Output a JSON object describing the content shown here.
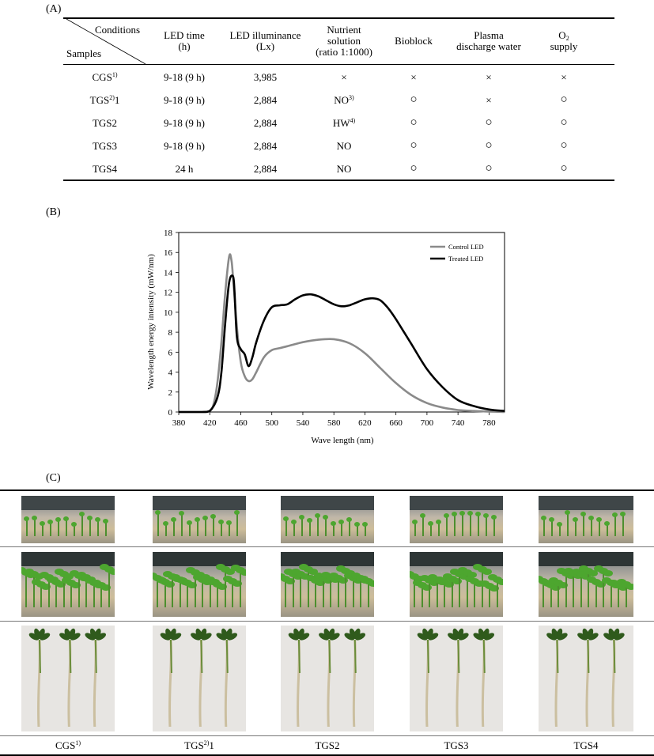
{
  "panel_labels": {
    "a": "(A)",
    "b": "(B)",
    "c": "(C)"
  },
  "table": {
    "corner_top": "Conditions",
    "corner_bottom": "Samples",
    "headers": [
      {
        "line1": "LED time",
        "line2": "(h)"
      },
      {
        "line1": "LED illuminance",
        "line2": "(Lx)"
      },
      {
        "line1": "Nutrient",
        "line2": "solution",
        "line3": "(ratio 1:1000)"
      },
      {
        "line1": "Bioblock"
      },
      {
        "line1": "Plasma",
        "line2": "discharge water"
      },
      {
        "line1": "O",
        "sub": "2",
        "line2": "supply"
      }
    ],
    "rows": [
      {
        "sample": "CGS",
        "sup": "1)",
        "suffix": "",
        "led_time": "9-18 (9 h)",
        "lux": "3,985",
        "nutrient": "×",
        "nutrient_sup": "",
        "bioblock": "×",
        "plasma": "×",
        "o2": "×"
      },
      {
        "sample": "TGS",
        "sup": "2)",
        "suffix": "1",
        "led_time": "9-18 (9 h)",
        "lux": "2,884",
        "nutrient": "NO",
        "nutrient_sup": "3)",
        "bioblock": "○",
        "plasma": "×",
        "o2": "○"
      },
      {
        "sample": "TGS2",
        "sup": "",
        "suffix": "",
        "led_time": "9-18 (9 h)",
        "lux": "2,884",
        "nutrient": "HW",
        "nutrient_sup": "4)",
        "bioblock": "○",
        "plasma": "○",
        "o2": "○"
      },
      {
        "sample": "TGS3",
        "sup": "",
        "suffix": "",
        "led_time": "9-18 (9 h)",
        "lux": "2,884",
        "nutrient": "NO",
        "nutrient_sup": "",
        "bioblock": "○",
        "plasma": "○",
        "o2": "○"
      },
      {
        "sample": "TGS4",
        "sup": "",
        "suffix": "",
        "led_time": "24 h",
        "lux": "2,884",
        "nutrient": "NO",
        "nutrient_sup": "",
        "bioblock": "○",
        "plasma": "○",
        "o2": "○"
      }
    ]
  },
  "chart_data": {
    "type": "line",
    "title": "",
    "xlabel": "Wave length (nm)",
    "ylabel": "Wavelength energy intensity (mW/nm)",
    "xlim": [
      380,
      800
    ],
    "ylim": [
      0,
      18
    ],
    "xticks": [
      380,
      420,
      460,
      500,
      540,
      580,
      620,
      660,
      700,
      740,
      780
    ],
    "yticks": [
      0,
      2,
      4,
      6,
      8,
      10,
      12,
      14,
      16,
      18
    ],
    "grid": false,
    "legend_position": "top-right",
    "series": [
      {
        "name": "Control LED",
        "color": "#8a8a8a",
        "x": [
          380,
          410,
          420,
          425,
          430,
          435,
          440,
          445,
          448,
          450,
          455,
          460,
          465,
          470,
          475,
          480,
          490,
          500,
          510,
          520,
          540,
          560,
          580,
          600,
          620,
          640,
          660,
          680,
          700,
          720,
          740,
          760,
          780,
          800
        ],
        "y": [
          0,
          0,
          0.1,
          0.8,
          3,
          7,
          12,
          15.6,
          15.2,
          13.5,
          8.5,
          5,
          3.6,
          3.1,
          3.3,
          4,
          5.5,
          6.2,
          6.4,
          6.6,
          7,
          7.25,
          7.3,
          6.9,
          5.9,
          4.4,
          2.9,
          1.7,
          0.9,
          0.45,
          0.2,
          0.1,
          0.05,
          0
        ]
      },
      {
        "name": "Treated LED",
        "color": "#000000",
        "x": [
          380,
          410,
          420,
          430,
          435,
          440,
          445,
          450,
          452,
          455,
          460,
          465,
          470,
          475,
          480,
          490,
          500,
          510,
          520,
          530,
          540,
          550,
          560,
          570,
          580,
          590,
          600,
          610,
          620,
          630,
          640,
          650,
          660,
          680,
          700,
          720,
          740,
          760,
          780,
          800
        ],
        "y": [
          0,
          0,
          0.1,
          1.5,
          4,
          9,
          13,
          13.6,
          12,
          7.5,
          6.3,
          5.8,
          4.6,
          5.5,
          7,
          9.2,
          10.5,
          10.7,
          10.8,
          11.3,
          11.7,
          11.8,
          11.6,
          11.2,
          10.8,
          10.6,
          10.7,
          11,
          11.3,
          11.4,
          11.2,
          10.4,
          9.3,
          6.8,
          4.3,
          2.5,
          1.2,
          0.6,
          0.25,
          0.1
        ]
      }
    ]
  },
  "photo_columns": [
    {
      "label": "CGS",
      "sup": "1)",
      "suffix": ""
    },
    {
      "label": "TGS",
      "sup": "2)",
      "suffix": "1"
    },
    {
      "label": "TGS2",
      "sup": "",
      "suffix": ""
    },
    {
      "label": "TGS3",
      "sup": "",
      "suffix": ""
    },
    {
      "label": "TGS4",
      "sup": "",
      "suffix": ""
    }
  ]
}
